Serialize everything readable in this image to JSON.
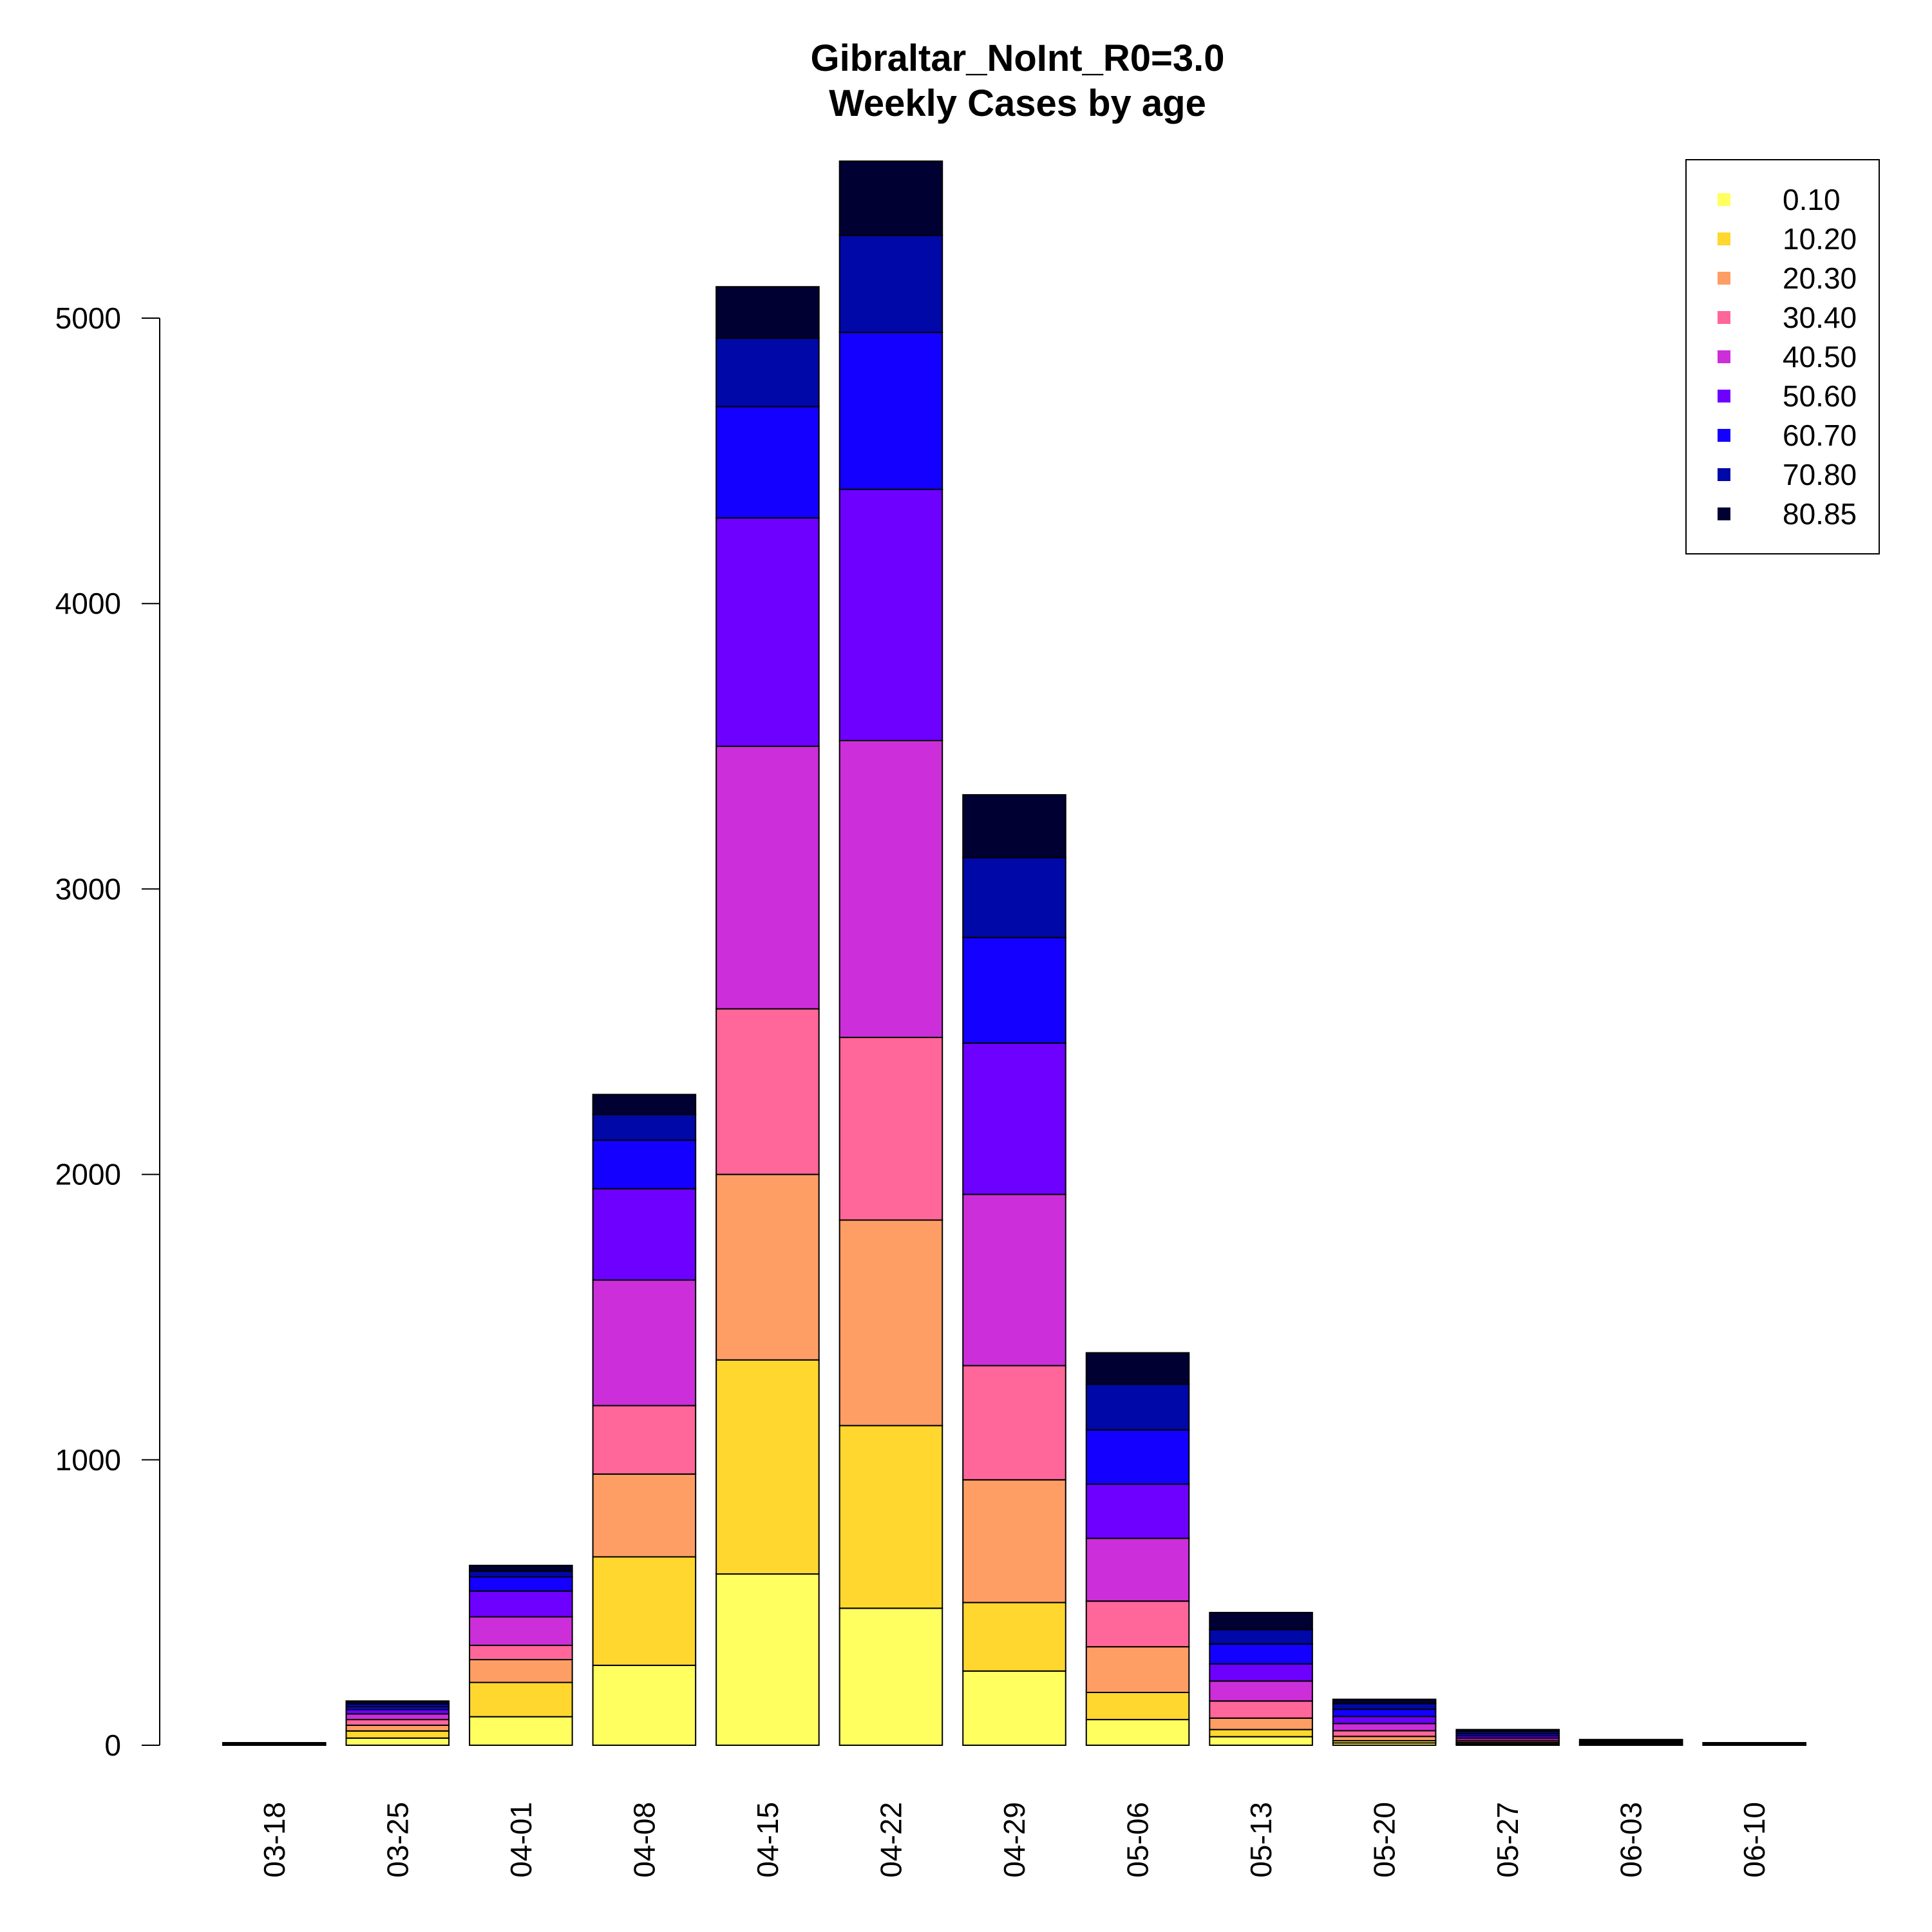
{
  "chart_data": {
    "type": "bar",
    "stacked": true,
    "title": "Gibraltar_NoInt_R0=3.0",
    "subtitle": "Weekly Cases by age",
    "xlabel": "",
    "ylabel": "",
    "ylim": [
      0,
      5500
    ],
    "yticks": [
      "0",
      "1000",
      "2000",
      "3000",
      "4000",
      "5000"
    ],
    "grid": false,
    "legend_position": "top-right",
    "categories": [
      "03-18",
      "03-25",
      "04-01",
      "04-08",
      "04-15",
      "04-22",
      "04-29",
      "05-06",
      "05-13",
      "05-20",
      "05-27",
      "06-03",
      "06-10"
    ],
    "series": [
      {
        "name": "0.10",
        "color": "#FFFF60",
        "values": [
          1,
          25,
          100,
          280,
          600,
          480,
          260,
          90,
          30,
          8,
          3,
          1,
          1
        ]
      },
      {
        "name": "10.20",
        "color": "#FFD72E",
        "values": [
          1,
          25,
          120,
          380,
          750,
          640,
          240,
          95,
          25,
          8,
          3,
          1,
          1
        ]
      },
      {
        "name": "20.30",
        "color": "#FF9E64",
        "values": [
          1,
          20,
          80,
          290,
          650,
          720,
          430,
          160,
          40,
          15,
          5,
          2,
          1
        ]
      },
      {
        "name": "30.40",
        "color": "#FF6699",
        "values": [
          1,
          20,
          50,
          240,
          580,
          640,
          400,
          160,
          60,
          20,
          6,
          2,
          1
        ]
      },
      {
        "name": "40.50",
        "color": "#CC2ED9",
        "values": [
          1,
          20,
          100,
          440,
          920,
          1040,
          600,
          220,
          70,
          25,
          8,
          3,
          1
        ]
      },
      {
        "name": "50.60",
        "color": "#6E00FF",
        "values": [
          1,
          15,
          90,
          320,
          800,
          880,
          530,
          190,
          60,
          25,
          8,
          3,
          1
        ]
      },
      {
        "name": "60.70",
        "color": "#1400FF",
        "values": [
          1,
          10,
          50,
          170,
          390,
          550,
          370,
          190,
          70,
          25,
          8,
          3,
          1
        ]
      },
      {
        "name": "70.80",
        "color": "#0008A8",
        "values": [
          1,
          10,
          20,
          90,
          240,
          340,
          280,
          160,
          50,
          20,
          8,
          3,
          1
        ]
      },
      {
        "name": "80.85",
        "color": "#000033",
        "values": [
          1,
          10,
          20,
          70,
          180,
          260,
          220,
          110,
          60,
          15,
          6,
          2,
          1
        ]
      }
    ]
  }
}
